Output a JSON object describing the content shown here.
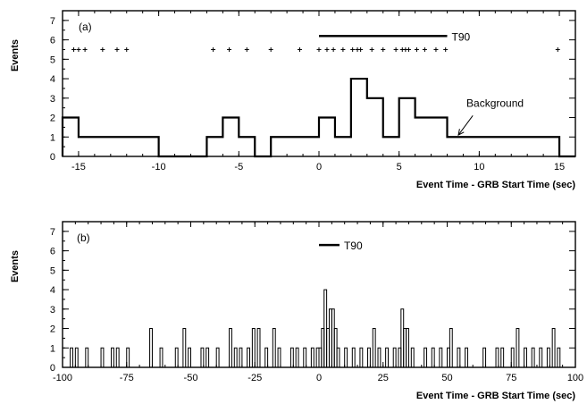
{
  "chart_data": [
    {
      "type": "histogram",
      "panel_label": "(a)",
      "xlabel": "Event Time - GRB Start Time (sec)",
      "ylabel": "Events",
      "xlim": [
        -16,
        16
      ],
      "ylim": [
        0,
        7.5
      ],
      "xticks": [
        -15,
        -10,
        -5,
        0,
        5,
        10,
        15
      ],
      "yticks": [
        0,
        1,
        2,
        3,
        4,
        5,
        6,
        7
      ],
      "line_width": 2.2,
      "bin_edges": [
        -16,
        -15,
        -14,
        -13,
        -12,
        -11,
        -10,
        -9,
        -8,
        -7,
        -6,
        -5,
        -4,
        -3,
        -2,
        -1,
        0,
        1,
        2,
        3,
        4,
        5,
        6,
        7,
        8,
        9,
        10,
        11,
        12,
        13,
        14,
        15,
        16
      ],
      "counts": [
        2,
        1,
        1,
        1,
        1,
        1,
        0,
        0,
        0,
        1,
        2,
        1,
        0,
        1,
        1,
        1,
        2,
        1,
        4,
        3,
        1,
        3,
        2,
        2,
        1,
        1,
        1,
        1,
        1,
        1,
        1,
        0
      ],
      "event_markers": [
        -15.3,
        -15.0,
        -14.6,
        -13.5,
        -12.6,
        -12.0,
        -6.6,
        -5.6,
        -4.5,
        -3.0,
        -1.2,
        0.0,
        0.5,
        0.9,
        1.5,
        2.1,
        2.4,
        2.6,
        3.3,
        4.0,
        4.8,
        5.2,
        5.4,
        5.6,
        6.1,
        6.6,
        7.3,
        7.9,
        14.9
      ],
      "event_marker_y": 5.5,
      "t90": {
        "start": 0.0,
        "end": 8.0,
        "y": 6.2,
        "label": "T90"
      },
      "annotation": {
        "text": "Background",
        "text_x": 9.2,
        "text_y": 2.55,
        "arrow_from": [
          9.6,
          2.1
        ],
        "arrow_to": [
          8.7,
          1.1
        ]
      }
    },
    {
      "type": "histogram",
      "panel_label": "(b)",
      "xlabel": "Event Time - GRB Start Time (sec)",
      "ylabel": "Events",
      "xlim": [
        -100,
        100
      ],
      "ylim": [
        0,
        7.5
      ],
      "xticks": [
        -100,
        -75,
        -50,
        -25,
        0,
        25,
        50,
        75,
        100
      ],
      "yticks": [
        0,
        1,
        2,
        3,
        4,
        5,
        6,
        7
      ],
      "line_width": 1.0,
      "events": [
        {
          "t": -97,
          "n": 1
        },
        {
          "t": -95,
          "n": 1
        },
        {
          "t": -91,
          "n": 1
        },
        {
          "t": -85,
          "n": 1
        },
        {
          "t": -81,
          "n": 1
        },
        {
          "t": -79,
          "n": 1
        },
        {
          "t": -75,
          "n": 1
        },
        {
          "t": -66,
          "n": 2
        },
        {
          "t": -62,
          "n": 1
        },
        {
          "t": -56,
          "n": 1
        },
        {
          "t": -53,
          "n": 2
        },
        {
          "t": -51,
          "n": 1
        },
        {
          "t": -46,
          "n": 1
        },
        {
          "t": -44,
          "n": 1
        },
        {
          "t": -40,
          "n": 1
        },
        {
          "t": -35,
          "n": 2
        },
        {
          "t": -33,
          "n": 1
        },
        {
          "t": -31,
          "n": 1
        },
        {
          "t": -28,
          "n": 1
        },
        {
          "t": -26,
          "n": 2
        },
        {
          "t": -24,
          "n": 2
        },
        {
          "t": -21,
          "n": 1
        },
        {
          "t": -18,
          "n": 2
        },
        {
          "t": -16,
          "n": 1
        },
        {
          "t": -11,
          "n": 1
        },
        {
          "t": -9,
          "n": 1
        },
        {
          "t": -6,
          "n": 1
        },
        {
          "t": -3,
          "n": 1
        },
        {
          "t": -1,
          "n": 1
        },
        {
          "t": 0,
          "n": 1
        },
        {
          "t": 1,
          "n": 2
        },
        {
          "t": 2,
          "n": 4
        },
        {
          "t": 3,
          "n": 2
        },
        {
          "t": 4,
          "n": 3
        },
        {
          "t": 5,
          "n": 3
        },
        {
          "t": 6,
          "n": 2
        },
        {
          "t": 7,
          "n": 1
        },
        {
          "t": 10,
          "n": 1
        },
        {
          "t": 13,
          "n": 1
        },
        {
          "t": 16,
          "n": 1
        },
        {
          "t": 19,
          "n": 1
        },
        {
          "t": 21,
          "n": 2
        },
        {
          "t": 23,
          "n": 1
        },
        {
          "t": 26,
          "n": 1
        },
        {
          "t": 29,
          "n": 1
        },
        {
          "t": 31,
          "n": 1
        },
        {
          "t": 32,
          "n": 3
        },
        {
          "t": 33,
          "n": 2
        },
        {
          "t": 34,
          "n": 2
        },
        {
          "t": 36,
          "n": 1
        },
        {
          "t": 41,
          "n": 1
        },
        {
          "t": 44,
          "n": 1
        },
        {
          "t": 47,
          "n": 1
        },
        {
          "t": 50,
          "n": 1
        },
        {
          "t": 51,
          "n": 2
        },
        {
          "t": 54,
          "n": 1
        },
        {
          "t": 57,
          "n": 1
        },
        {
          "t": 64,
          "n": 1
        },
        {
          "t": 69,
          "n": 1
        },
        {
          "t": 71,
          "n": 1
        },
        {
          "t": 75,
          "n": 1
        },
        {
          "t": 77,
          "n": 2
        },
        {
          "t": 80,
          "n": 1
        },
        {
          "t": 83,
          "n": 1
        },
        {
          "t": 86,
          "n": 1
        },
        {
          "t": 89,
          "n": 1
        },
        {
          "t": 91,
          "n": 2
        },
        {
          "t": 93,
          "n": 1
        }
      ],
      "t90": {
        "start": 0.0,
        "end": 8.0,
        "y": 6.3,
        "label": "T90"
      }
    }
  ]
}
